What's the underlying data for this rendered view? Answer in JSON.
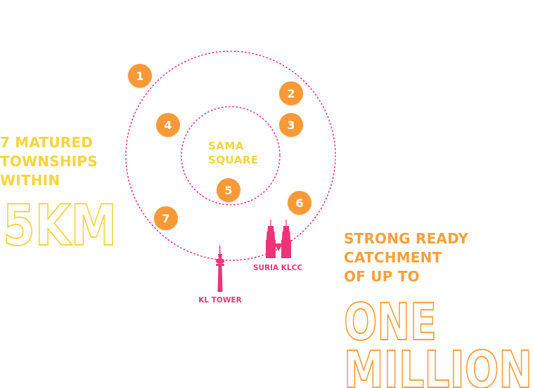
{
  "left_heading": {
    "line1": "7 MATURED",
    "line2": "TOWNSHIPS",
    "line3": "WITHIN",
    "big": "5KM"
  },
  "right_heading": {
    "line1": "STRONG READY",
    "line2": "CATCHMENT",
    "line3": "OF UP TO",
    "big1": "ONE",
    "big2": "MILLION"
  },
  "center_label": {
    "line1": "SAMA",
    "line2": "SQUARE"
  },
  "markers": [
    {
      "label": "1"
    },
    {
      "label": "2"
    },
    {
      "label": "3"
    },
    {
      "label": "4"
    },
    {
      "label": "5"
    },
    {
      "label": "6"
    },
    {
      "label": "7"
    }
  ],
  "landmarks": {
    "kl_tower": "KL TOWER",
    "suria_klcc": "SURIA KLCC"
  },
  "colors": {
    "yellow": "#f7d43b",
    "orange": "#f7a03b",
    "marker": "#f79a36",
    "pink": "#ec3479",
    "white": "#ffffff"
  }
}
